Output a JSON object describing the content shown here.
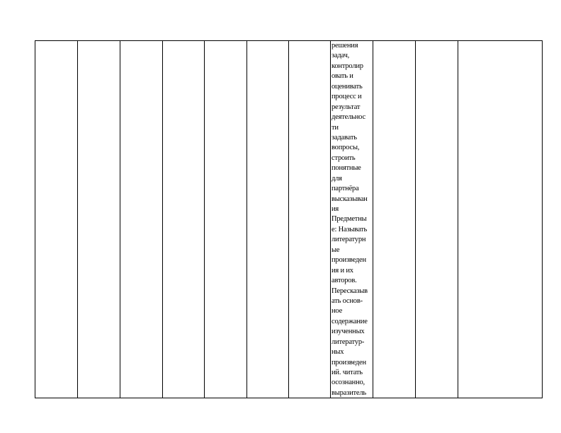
{
  "table": {
    "column_count": 11,
    "text_column_index": 7,
    "cell_lines": [
      "решения",
      "задач,",
      "контролир",
      "овать и",
      "оценивать",
      "процесс и",
      "результат",
      "деятельнос",
      "ти",
      "задавать",
      "вопросы,",
      "строить",
      "понятные",
      "для",
      "партнёра",
      "высказыван",
      "ия",
      "Предметны",
      "е: Называть",
      "литературн",
      "ые",
      "произведен",
      "ия и их",
      "авторов.",
      "Пересказыв",
      "ать основ-",
      "ное",
      "содержание",
      "изученных",
      "литератур-",
      "ных",
      "произведен",
      "ий. читать",
      "осознанно,",
      "выразитель"
    ]
  }
}
